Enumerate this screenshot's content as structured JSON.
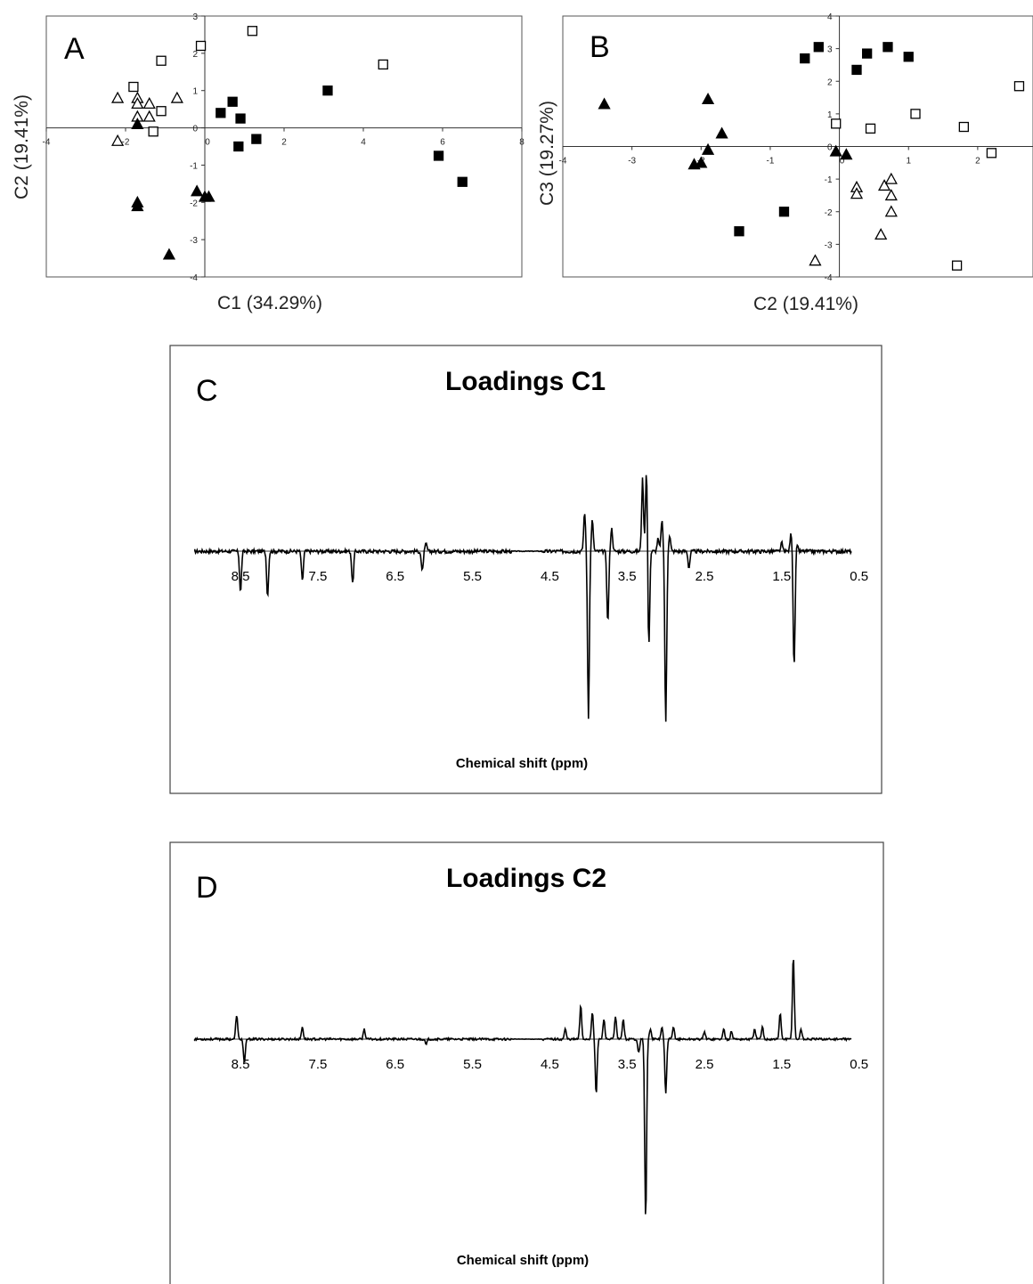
{
  "chart_data": [
    {
      "panel": "A",
      "type": "scatter",
      "xlabel": "C1 (34.29%)",
      "ylabel": "C2 (19.41%)",
      "xlim": [
        -4,
        8
      ],
      "ylim": [
        -4,
        3
      ],
      "x_ticks": [
        "-4",
        "-2",
        "0",
        "2",
        "4",
        "6",
        "8"
      ],
      "y_ticks": [
        "3",
        "2",
        "1",
        "0",
        "-1",
        "-2",
        "-3",
        "-4"
      ],
      "series": [
        {
          "marker": "open-square",
          "points": [
            [
              -0.1,
              2.2
            ],
            [
              1.2,
              2.6
            ],
            [
              -1.1,
              1.8
            ],
            [
              4.5,
              1.7
            ],
            [
              -1.8,
              1.1
            ],
            [
              -1.1,
              0.45
            ],
            [
              -1.3,
              -0.1
            ]
          ]
        },
        {
          "marker": "filled-square",
          "points": [
            [
              3.1,
              1.0
            ],
            [
              0.7,
              0.7
            ],
            [
              0.4,
              0.4
            ],
            [
              0.9,
              0.25
            ],
            [
              1.3,
              -0.3
            ],
            [
              0.85,
              -0.5
            ],
            [
              5.9,
              -0.75
            ],
            [
              6.5,
              -1.45
            ]
          ]
        },
        {
          "marker": "open-triangle",
          "points": [
            [
              -2.2,
              0.8
            ],
            [
              -1.7,
              0.8
            ],
            [
              -1.7,
              0.65
            ],
            [
              -1.4,
              0.65
            ],
            [
              -0.7,
              0.8
            ],
            [
              -1.7,
              0.3
            ],
            [
              -1.4,
              0.3
            ],
            [
              -2.2,
              -0.35
            ]
          ]
        },
        {
          "marker": "filled-triangle",
          "points": [
            [
              -1.7,
              0.1
            ],
            [
              -1.7,
              -2.0
            ],
            [
              -1.7,
              -2.1
            ],
            [
              -0.2,
              -1.7
            ],
            [
              0.0,
              -1.85
            ],
            [
              0.1,
              -1.85
            ],
            [
              -0.9,
              -3.4
            ]
          ]
        }
      ]
    },
    {
      "panel": "B",
      "type": "scatter",
      "xlabel": "C2 (19.41%)",
      "ylabel": "C3 (19.27%)",
      "xlim": [
        -4,
        2.8
      ],
      "ylim": [
        -4,
        4
      ],
      "x_ticks": [
        "-4",
        "-3",
        "-2",
        "-1",
        "0",
        "1",
        "2"
      ],
      "y_ticks": [
        "4",
        "3",
        "2",
        "1",
        "0",
        "-1",
        "-2",
        "-3",
        "-4"
      ],
      "series": [
        {
          "marker": "open-square",
          "points": [
            [
              2.6,
              1.85
            ],
            [
              1.1,
              1.0
            ],
            [
              1.8,
              0.6
            ],
            [
              0.45,
              0.55
            ],
            [
              -0.05,
              0.7
            ],
            [
              2.2,
              -0.2
            ],
            [
              1.7,
              -3.65
            ]
          ]
        },
        {
          "marker": "filled-square",
          "points": [
            [
              -0.3,
              3.05
            ],
            [
              -0.5,
              2.7
            ],
            [
              0.4,
              2.85
            ],
            [
              0.7,
              3.05
            ],
            [
              1.0,
              2.75
            ],
            [
              0.25,
              2.35
            ],
            [
              -0.8,
              -2.0
            ],
            [
              -1.45,
              -2.6
            ]
          ]
        },
        {
          "marker": "open-triangle",
          "points": [
            [
              0.25,
              -1.25
            ],
            [
              0.25,
              -1.45
            ],
            [
              0.65,
              -1.2
            ],
            [
              0.75,
              -1.0
            ],
            [
              0.75,
              -1.5
            ],
            [
              0.75,
              -2.0
            ],
            [
              0.6,
              -2.7
            ],
            [
              -0.35,
              -3.5
            ]
          ]
        },
        {
          "marker": "filled-triangle",
          "points": [
            [
              -3.4,
              1.3
            ],
            [
              -1.9,
              1.45
            ],
            [
              -1.7,
              0.4
            ],
            [
              -1.9,
              -0.1
            ],
            [
              -2.0,
              -0.5
            ],
            [
              -2.1,
              -0.55
            ],
            [
              -0.05,
              -0.15
            ],
            [
              0.1,
              -0.25
            ]
          ]
        }
      ]
    },
    {
      "panel": "C",
      "type": "line",
      "title": "Loadings C1",
      "xlabel": "Chemical shift (ppm)",
      "x_ticks": [
        "8.5",
        "7.5",
        "6.5",
        "5.5",
        "4.5",
        "3.5",
        "2.5",
        "1.5",
        "0.5"
      ],
      "x_range": [
        9.1,
        0.6
      ],
      "ylim": [
        -1.2,
        0.85
      ],
      "baseline_noise": 0.03,
      "peaks": [
        [
          8.5,
          -0.3
        ],
        [
          8.15,
          -0.33
        ],
        [
          7.7,
          -0.22
        ],
        [
          7.05,
          -0.24
        ],
        [
          6.15,
          -0.15
        ],
        [
          6.1,
          0.07
        ],
        [
          4.05,
          0.38
        ],
        [
          4.0,
          -1.2
        ],
        [
          3.95,
          0.3
        ],
        [
          3.75,
          -0.52
        ],
        [
          3.7,
          0.22
        ],
        [
          3.3,
          0.7
        ],
        [
          3.25,
          0.8
        ],
        [
          3.22,
          -0.72
        ],
        [
          3.1,
          0.12
        ],
        [
          3.05,
          0.3
        ],
        [
          3.0,
          -1.25
        ],
        [
          2.95,
          0.15
        ],
        [
          2.7,
          -0.12
        ],
        [
          1.5,
          0.08
        ],
        [
          1.38,
          0.17
        ],
        [
          1.34,
          -0.85
        ],
        [
          1.3,
          0.05
        ]
      ]
    },
    {
      "panel": "D",
      "type": "line",
      "title": "Loadings C2",
      "xlabel": "Chemical shift (ppm)",
      "x_ticks": [
        "8.5",
        "7.5",
        "6.5",
        "5.5",
        "4.5",
        "3.5",
        "2.5",
        "1.5",
        "0.5"
      ],
      "x_range": [
        9.1,
        0.6
      ],
      "ylim": [
        -1.65,
        0.85
      ],
      "baseline_noise": 0.02,
      "peaks": [
        [
          8.55,
          0.24
        ],
        [
          8.45,
          -0.22
        ],
        [
          7.7,
          0.12
        ],
        [
          6.9,
          0.1
        ],
        [
          6.1,
          -0.05
        ],
        [
          4.3,
          0.1
        ],
        [
          4.1,
          0.33
        ],
        [
          3.95,
          0.27
        ],
        [
          3.9,
          -0.5
        ],
        [
          3.8,
          0.2
        ],
        [
          3.65,
          0.22
        ],
        [
          3.55,
          0.2
        ],
        [
          3.35,
          -0.12
        ],
        [
          3.26,
          -1.65
        ],
        [
          3.2,
          0.1
        ],
        [
          3.05,
          0.12
        ],
        [
          3.0,
          -0.5
        ],
        [
          2.9,
          0.12
        ],
        [
          2.5,
          0.08
        ],
        [
          2.25,
          0.1
        ],
        [
          2.15,
          0.08
        ],
        [
          1.85,
          0.1
        ],
        [
          1.75,
          0.12
        ],
        [
          1.52,
          0.25
        ],
        [
          1.35,
          0.82
        ],
        [
          1.25,
          0.1
        ]
      ]
    }
  ]
}
